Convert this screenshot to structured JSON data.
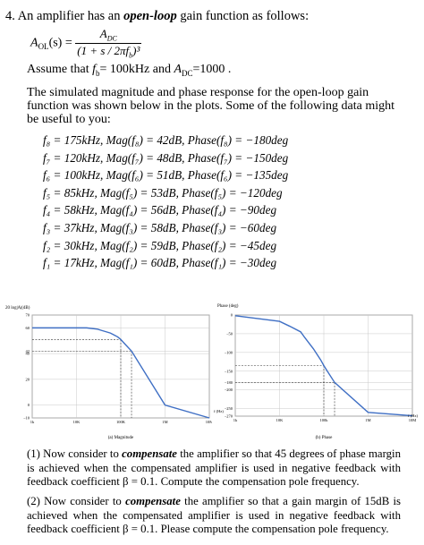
{
  "question": {
    "number": "4.",
    "intro_before": "An amplifier has an ",
    "intro_emph": "open-loop",
    "intro_after": " gain function as follows:"
  },
  "formula": {
    "lhs": "A",
    "lhs_sub": "OL",
    "lhs_arg": "(s) =",
    "numerator": "A",
    "numerator_sub": "DC",
    "denominator": "(1 + s / 2πf",
    "denominator_sub": "b",
    "denominator_exp": ")³"
  },
  "assumption": {
    "lead": "Assume that ",
    "fb_symbol": "f",
    "fb_sub": "b",
    "fb_value": "= 100kHz",
    "joiner": " and ",
    "adc_symbol": "A",
    "adc_sub": "DC",
    "adc_value": "=1000 ."
  },
  "intro_text": "The simulated magnitude and phase response for the open-loop gain function was shown below in the plots. Some of the following data might be useful to you:",
  "data_points": [
    "f₈ = 175kHz, Mag(f₈) = 42dB, Phase(f₈) = −180deg",
    "f₇ = 120kHz, Mag(f₇) = 48dB, Phase(f₇) = −150deg",
    "f₆ = 100kHz, Mag(f₆) = 51dB, Phase(f₆) = −135deg",
    "f₅ = 85kHz, Mag(f₅) = 53dB, Phase(f₅) = −120deg",
    "f₄ = 58kHz, Mag(f₄) = 56dB, Phase(f₄) = −90deg",
    "f₃ = 37kHz, Mag(f₃) = 58dB, Phase(f₃) = −60deg",
    "f₂ = 30kHz, Mag(f₂) = 59dB, Phase(f₂) = −45deg",
    "f₁ = 17kHz, Mag(f₁) = 60dB, Phase(f₁) = −30deg"
  ],
  "magnitude_plot": {
    "ylabel": "20 log|A|(dB)",
    "yticks": [
      "70",
      "60",
      "42",
      "40",
      "20",
      "0",
      "−10"
    ],
    "xticks": [
      "1k",
      "10K",
      "100K",
      "1M",
      "10M"
    ],
    "caption": "(a) Magnitude"
  },
  "phase_plot": {
    "ylabel": "Phase (deg)",
    "yticks": [
      "0",
      "−50",
      "−100",
      "−150",
      "−180",
      "−200",
      "−250",
      "−270"
    ],
    "xticks": [
      "1k",
      "10K",
      "100k",
      "1M",
      "10M"
    ],
    "xlabel": "f (Hz)",
    "xlabel_left": "f (Hz)",
    "caption": "(b) Phase"
  },
  "chart_data": [
    {
      "type": "line",
      "x": [
        1000,
        10000,
        17000,
        30000,
        37000,
        58000,
        85000,
        100000,
        120000,
        175000,
        1000000,
        10000000
      ],
      "values": [
        60,
        60,
        60,
        59,
        58,
        56,
        53,
        51,
        48,
        42,
        0,
        -10
      ],
      "xscale": "log",
      "xlim": [
        1000,
        10000000
      ],
      "ylim": [
        -10,
        70
      ],
      "ylabel": "20 log|A|(dB)",
      "grid": true
    },
    {
      "type": "line",
      "x": [
        1000,
        10000,
        17000,
        30000,
        37000,
        58000,
        85000,
        100000,
        120000,
        175000,
        1000000,
        10000000
      ],
      "values": [
        -2,
        -17,
        -30,
        -45,
        -60,
        -90,
        -120,
        -135,
        -150,
        -180,
        -260,
        -269
      ],
      "xscale": "log",
      "xlim": [
        1000,
        10000000
      ],
      "ylim": [
        -270,
        0
      ],
      "ylabel": "Phase (deg)",
      "xlabel": "f (Hz)",
      "grid": true
    }
  ],
  "part1": {
    "lead": "(1) Now consider to ",
    "emph": "compensate",
    "rest": " the amplifier so that 45 degrees of phase margin is achieved when the compensated amplifier is used in negative feedback with feedback coefficient β = 0.1.  Compute the compensation pole frequency."
  },
  "part2": {
    "lead": "(2) Now consider to ",
    "emph": "compensate",
    "rest": " the amplifier so that a gain margin of 15dB is achieved when the compensated amplifier is used in negative feedback with feedback coefficient β = 0.1. Please compute the compensation pole frequency."
  }
}
